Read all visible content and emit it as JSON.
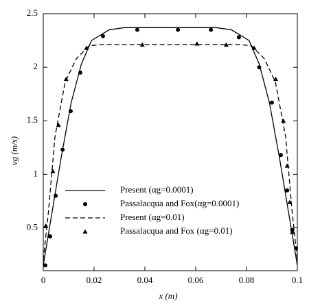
{
  "chart_data": {
    "type": "line",
    "xlabel": "x (m)",
    "ylabel": "vg (m/s)",
    "xlim": [
      0,
      0.1
    ],
    "ylim": [
      0.1,
      2.5
    ],
    "xticks": [
      0,
      0.02,
      0.04,
      0.06,
      0.08,
      0.1
    ],
    "yticks": [
      0.5,
      1,
      1.5,
      2,
      2.5
    ],
    "legend": "lower-left",
    "series": [
      {
        "name": "Present (αg=0.0001)",
        "color": "#000000",
        "style": "solid",
        "x": [
          0,
          0.003,
          0.007,
          0.011,
          0.015,
          0.019,
          0.026,
          0.032,
          0.068,
          0.074,
          0.081,
          0.085,
          0.089,
          0.093,
          0.097,
          0.1
        ],
        "values": [
          0.15,
          0.58,
          1.15,
          1.67,
          2.03,
          2.25,
          2.35,
          2.37,
          2.37,
          2.35,
          2.25,
          2.03,
          1.67,
          1.15,
          0.58,
          0.15
        ]
      },
      {
        "name": "Passalacqua and Fox(αg=0.0001)",
        "color": "#000000",
        "style": "circle",
        "x": [
          0.0008,
          0.0027,
          0.0049,
          0.0076,
          0.0108,
          0.0146,
          0.0235,
          0.037,
          0.053,
          0.066,
          0.077,
          0.085,
          0.09,
          0.0935,
          0.096,
          0.098,
          0.0995
        ],
        "values": [
          0.15,
          0.42,
          0.8,
          1.23,
          1.59,
          1.95,
          2.29,
          2.35,
          2.35,
          2.35,
          2.28,
          2.0,
          1.67,
          1.18,
          0.85,
          0.48,
          0.31
        ]
      },
      {
        "name": "Present (αg=0.01)",
        "color": "#000000",
        "style": "dashed",
        "x": [
          0,
          0.002,
          0.0046,
          0.0086,
          0.013,
          0.018,
          0.022,
          0.078,
          0.082,
          0.087,
          0.0914,
          0.0954,
          0.098,
          0.1
        ],
        "values": [
          0.2,
          0.64,
          1.35,
          1.86,
          2.08,
          2.2,
          2.21,
          2.21,
          2.2,
          2.08,
          1.86,
          1.35,
          0.64,
          0.2
        ]
      },
      {
        "name": "Passalacqua and Fox (αg=0.01)",
        "color": "#000000",
        "style": "triangle",
        "x": [
          0.001,
          0.0038,
          0.006,
          0.009,
          0.017,
          0.039,
          0.0605,
          0.072,
          0.083,
          0.0915,
          0.0945,
          0.096,
          0.097,
          0.098
        ],
        "values": [
          0.52,
          1.03,
          1.46,
          1.89,
          2.18,
          2.21,
          2.22,
          2.21,
          2.18,
          1.89,
          1.5,
          1.08,
          0.74,
          0.46
        ]
      }
    ]
  }
}
